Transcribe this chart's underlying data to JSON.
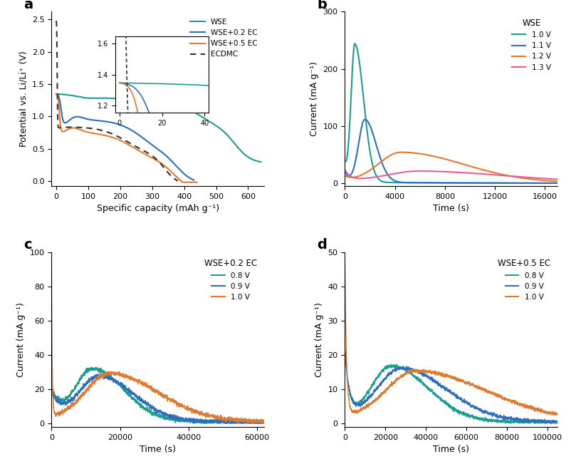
{
  "colors": {
    "WSE": "#1a9e8f",
    "WSE02EC": "#2e6fbd",
    "WSE05EC": "#e07a30",
    "ECDMC": "#333333",
    "b_10V": "#1a9e8f",
    "b_11V": "#2e6fbd",
    "b_12V": "#e07a30",
    "b_13V": "#e06090",
    "c_08V": "#1a9e8f",
    "c_09V": "#2e6fbd",
    "c_10V": "#e07a30",
    "d_08V": "#1a9e8f",
    "d_09V": "#2e6fbd",
    "d_10V": "#e07a30"
  },
  "panel_a": {
    "xlabel": "Specific capacity (mAh g⁻¹)",
    "ylabel": "Potential vs. Li/Li⁺ (V)",
    "xlim": [
      -15,
      650
    ],
    "ylim": [
      -0.08,
      2.62
    ],
    "xticks": [
      0,
      100,
      200,
      300,
      400,
      500,
      600
    ],
    "yticks": [
      0.0,
      0.5,
      1.0,
      1.5,
      2.0,
      2.5
    ],
    "inset": {
      "xlim": [
        -2,
        42
      ],
      "ylim": [
        1.15,
        1.65
      ],
      "xticks": [
        0,
        20,
        40
      ],
      "yticks": [
        1.2,
        1.4,
        1.6
      ]
    }
  },
  "panel_b": {
    "xlabel": "Time (s)",
    "ylabel": "Current (mA g⁻¹)",
    "xlim": [
      0,
      17000
    ],
    "ylim": [
      -5,
      300
    ],
    "xticks": [
      0,
      4000,
      8000,
      12000,
      16000
    ],
    "yticks": [
      0,
      100,
      200,
      300
    ],
    "title": "WSE",
    "legend": [
      "1.0 V",
      "1.1 V",
      "1.2 V",
      "1.3 V"
    ]
  },
  "panel_c": {
    "xlabel": "Time (s)",
    "ylabel": "Current (mA g⁻¹)",
    "xlim": [
      0,
      62000
    ],
    "ylim": [
      -2,
      100
    ],
    "xticks": [
      0,
      20000,
      40000,
      60000
    ],
    "yticks": [
      0,
      20,
      40,
      60,
      80,
      100
    ],
    "title": "WSE+0.2 EC",
    "legend": [
      "0.8 V",
      "0.9 V",
      "1.0 V"
    ]
  },
  "panel_d": {
    "xlabel": "Time (s)",
    "ylabel": "Current (mA g⁻¹)",
    "xlim": [
      0,
      105000
    ],
    "ylim": [
      -1,
      50
    ],
    "xticks": [
      0,
      20000,
      40000,
      60000,
      80000,
      100000
    ],
    "yticks": [
      0,
      10,
      20,
      30,
      40,
      50
    ],
    "title": "WSE+0.5 EC",
    "legend": [
      "0.8 V",
      "0.9 V",
      "1.0 V"
    ]
  }
}
